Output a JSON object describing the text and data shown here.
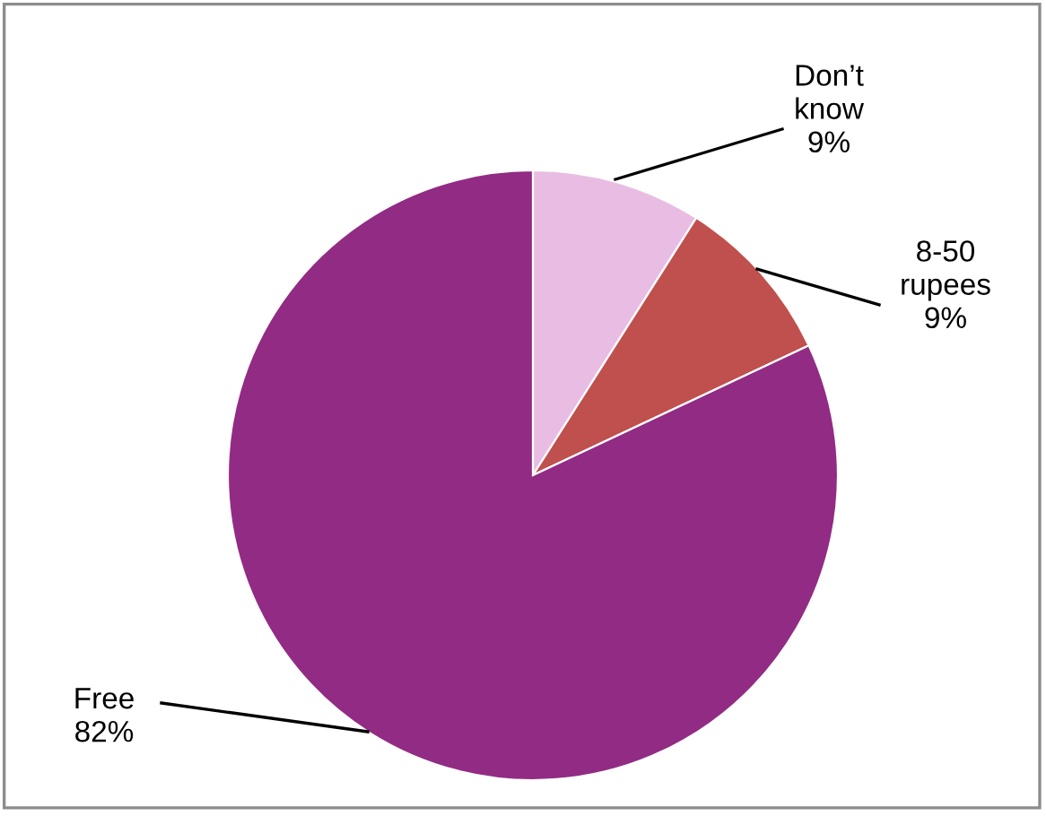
{
  "chart_data": {
    "type": "pie",
    "categories": [
      "Don’t know",
      "8-50 rupees",
      "Free"
    ],
    "values": [
      9,
      9,
      82
    ],
    "colors": [
      "#e9bde3",
      "#c0504d",
      "#922b84"
    ],
    "value_labels": [
      "9%",
      "9%",
      "82%"
    ]
  }
}
